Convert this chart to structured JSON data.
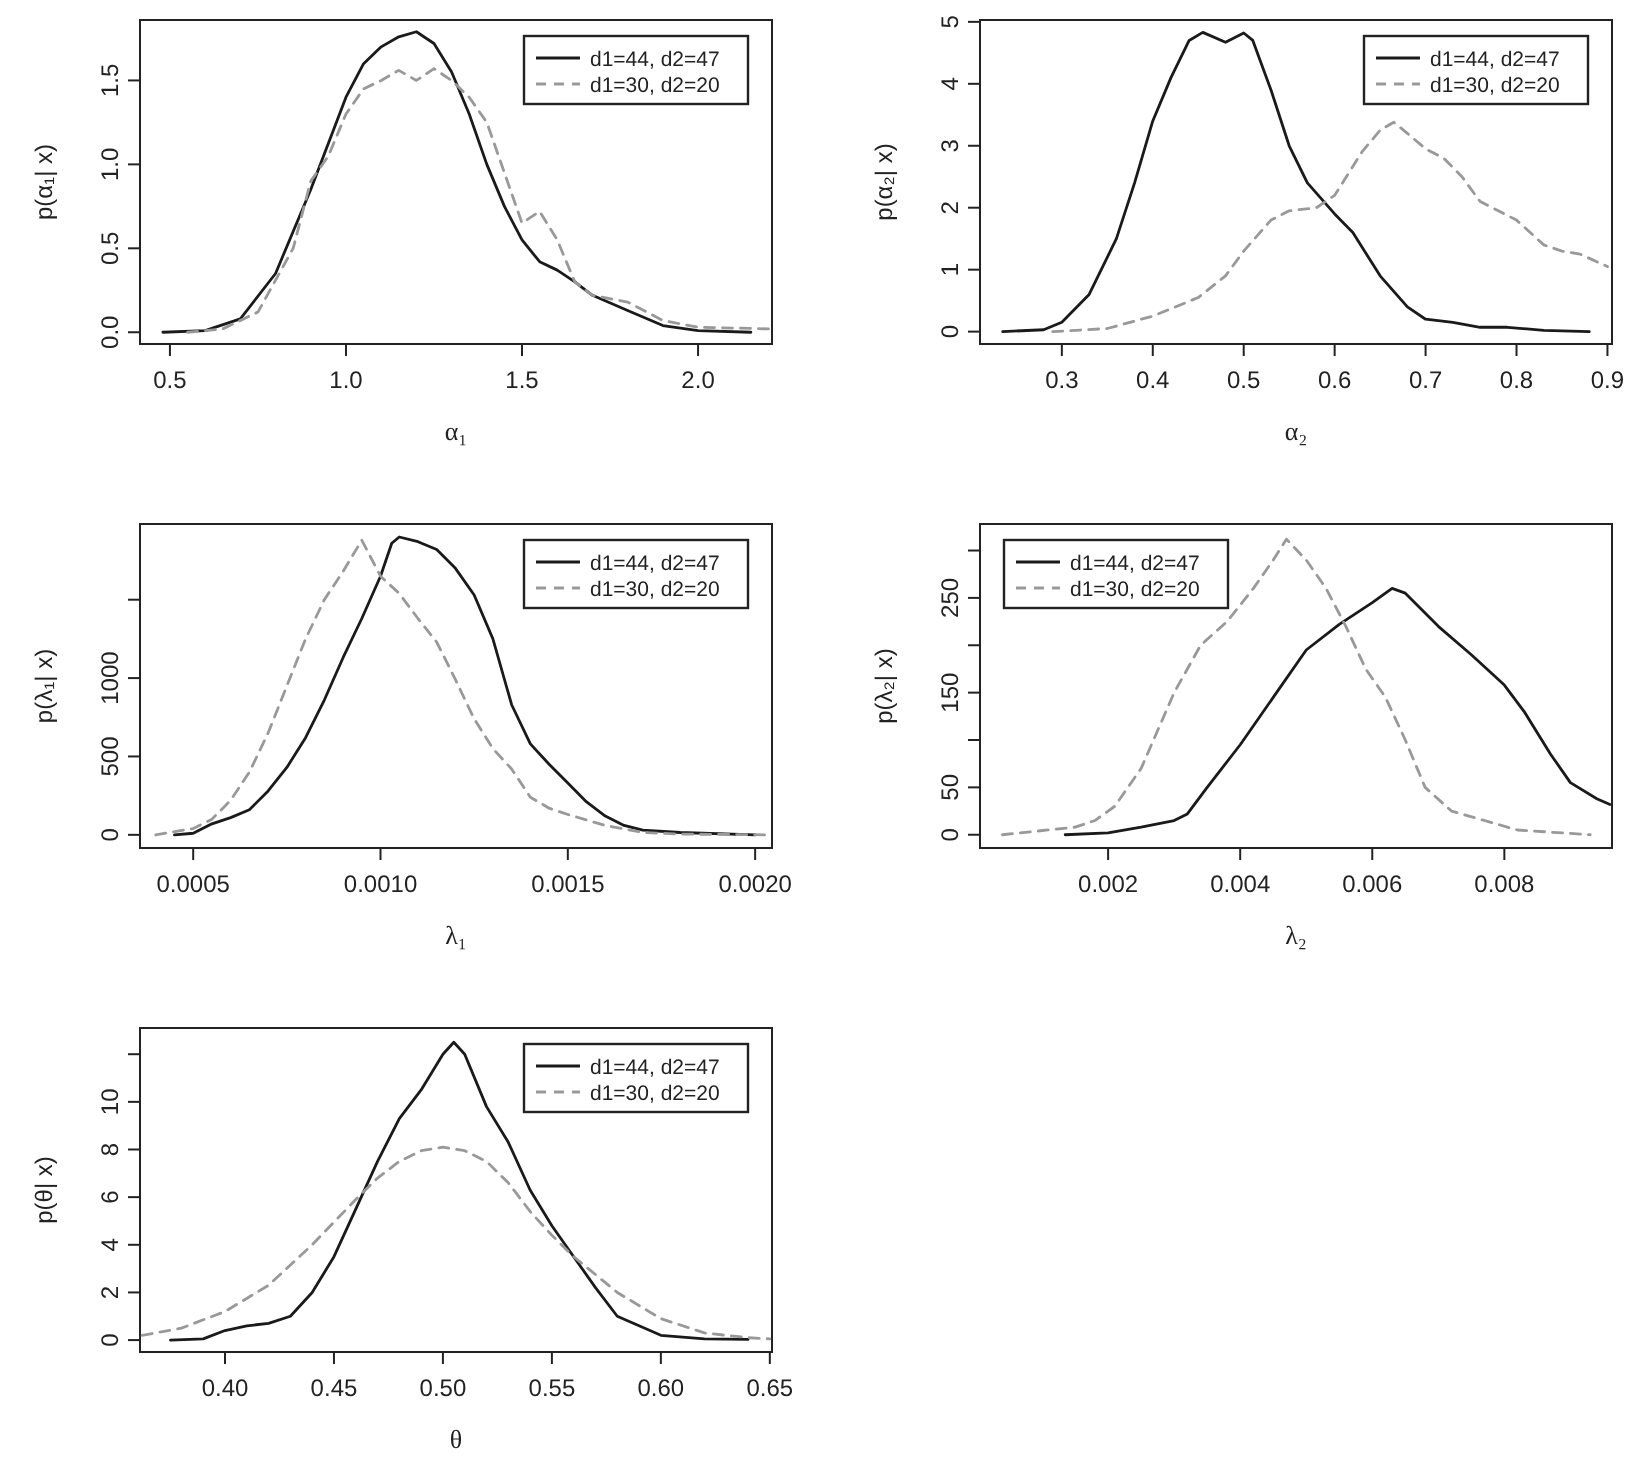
{
  "chart_data": [
    {
      "type": "line",
      "xlabel": "α₁",
      "ylabel": "p(α₁| x)",
      "xlim": [
        0.415,
        2.21
      ],
      "ylim": [
        -0.07,
        1.86
      ],
      "xticks": [
        0.5,
        {
          "value": 1,
          "label": "1.0"
        },
        1.5,
        {
          "value": 2,
          "label": "2.0"
        }
      ],
      "yticks": [
        {
          "value": 0,
          "label": "0.0"
        },
        0.5,
        {
          "value": 1,
          "label": "1.0"
        },
        1.5
      ],
      "legend": "top right",
      "series": [
        {
          "name": "d1=44, d2=47",
          "color": "#1a1a1a",
          "line_style": "solid",
          "x": [
            0.48,
            0.6,
            0.7,
            0.8,
            0.9,
            1.0,
            1.05,
            1.1,
            1.15,
            1.2,
            1.25,
            1.3,
            1.35,
            1.4,
            1.45,
            1.5,
            1.55,
            1.6,
            1.65,
            1.7,
            1.8,
            1.9,
            2.0,
            2.15
          ],
          "values": [
            0,
            0.01,
            0.08,
            0.35,
            0.85,
            1.4,
            1.6,
            1.7,
            1.76,
            1.79,
            1.72,
            1.55,
            1.3,
            1.0,
            0.75,
            0.55,
            0.42,
            0.37,
            0.3,
            0.22,
            0.13,
            0.04,
            0.01,
            0
          ]
        },
        {
          "name": "d1=30, d2=20",
          "color": "#999999",
          "line_style": "dashed",
          "x": [
            0.55,
            0.65,
            0.75,
            0.85,
            0.9,
            0.95,
            1.0,
            1.05,
            1.1,
            1.15,
            1.2,
            1.25,
            1.3,
            1.35,
            1.4,
            1.45,
            1.5,
            1.55,
            1.6,
            1.65,
            1.7,
            1.8,
            1.9,
            2.0,
            2.2
          ],
          "values": [
            0,
            0.02,
            0.12,
            0.5,
            0.9,
            1.05,
            1.3,
            1.45,
            1.5,
            1.56,
            1.5,
            1.57,
            1.5,
            1.4,
            1.25,
            0.95,
            0.65,
            0.72,
            0.55,
            0.3,
            0.22,
            0.18,
            0.07,
            0.03,
            0.02
          ]
        }
      ]
    },
    {
      "type": "line",
      "xlabel": "α₂",
      "ylabel": "p(α₂| x)",
      "xlim": [
        0.21,
        0.905
      ],
      "ylim": [
        -0.2,
        5.03
      ],
      "xticks": [
        0.3,
        0.4,
        0.5,
        0.6,
        0.7,
        0.8,
        0.9
      ],
      "yticks": [
        0,
        1,
        2,
        3,
        4,
        5
      ],
      "legend": "top right",
      "series": [
        {
          "name": "d1=44, d2=47",
          "color": "#1a1a1a",
          "line_style": "solid",
          "x": [
            0.235,
            0.28,
            0.3,
            0.33,
            0.36,
            0.38,
            0.4,
            0.42,
            0.44,
            0.455,
            0.48,
            0.5,
            0.51,
            0.53,
            0.55,
            0.57,
            0.6,
            0.62,
            0.65,
            0.68,
            0.7,
            0.73,
            0.76,
            0.79,
            0.83,
            0.88
          ],
          "values": [
            0,
            0.03,
            0.15,
            0.6,
            1.5,
            2.4,
            3.4,
            4.1,
            4.7,
            4.83,
            4.67,
            4.82,
            4.7,
            3.9,
            3.0,
            2.4,
            1.9,
            1.6,
            0.9,
            0.4,
            0.2,
            0.15,
            0.07,
            0.07,
            0.02,
            0
          ]
        },
        {
          "name": "d1=30, d2=20",
          "color": "#999999",
          "line_style": "dashed",
          "x": [
            0.29,
            0.35,
            0.4,
            0.45,
            0.48,
            0.5,
            0.53,
            0.55,
            0.58,
            0.6,
            0.63,
            0.65,
            0.665,
            0.68,
            0.7,
            0.72,
            0.74,
            0.76,
            0.78,
            0.8,
            0.83,
            0.85,
            0.87,
            0.9
          ],
          "values": [
            0,
            0.05,
            0.25,
            0.55,
            0.9,
            1.3,
            1.8,
            1.95,
            2.0,
            2.2,
            2.9,
            3.25,
            3.38,
            3.2,
            2.95,
            2.8,
            2.5,
            2.1,
            1.95,
            1.8,
            1.4,
            1.3,
            1.25,
            1.05
          ]
        }
      ]
    },
    {
      "type": "line",
      "xlabel": "λ₁",
      "ylabel": "p(λ₁| x)",
      "xlim": [
        0.000358,
        0.002045
      ],
      "ylim": [
        -84,
        1983
      ],
      "xticks": [
        0.0005,
        {
          "value": 0.001,
          "label": "0.0010"
        },
        0.0015,
        {
          "value": 0.002,
          "label": "0.0020"
        }
      ],
      "yticks": [
        0,
        500,
        1000,
        {
          "value": 1500,
          "label": null
        }
      ],
      "legend": "top right",
      "series": [
        {
          "name": "d1=44, d2=47",
          "color": "#1a1a1a",
          "line_style": "solid",
          "x": [
            0.00045,
            0.0005,
            0.00055,
            0.0006,
            0.00065,
            0.0007,
            0.00075,
            0.0008,
            0.00085,
            0.0009,
            0.00095,
            0.001,
            0.00103,
            0.00105,
            0.0011,
            0.00115,
            0.0012,
            0.00125,
            0.0013,
            0.00135,
            0.0014,
            0.00145,
            0.0015,
            0.00155,
            0.0016,
            0.00165,
            0.0017,
            0.0018,
            0.002
          ],
          "values": [
            0,
            10,
            70,
            110,
            160,
            280,
            430,
            620,
            860,
            1130,
            1380,
            1650,
            1860,
            1900,
            1870,
            1820,
            1700,
            1530,
            1250,
            830,
            580,
            450,
            330,
            210,
            120,
            60,
            30,
            15,
            0
          ]
        },
        {
          "name": "d1=30, d2=20",
          "color": "#999999",
          "line_style": "dashed",
          "x": [
            0.0004,
            0.0005,
            0.00055,
            0.0006,
            0.00065,
            0.0007,
            0.00075,
            0.0008,
            0.00085,
            0.0009,
            0.00095,
            0.001,
            0.00105,
            0.0011,
            0.00115,
            0.0012,
            0.00125,
            0.0013,
            0.00135,
            0.0014,
            0.00145,
            0.0015,
            0.0016,
            0.0017,
            0.0018,
            0.00204
          ],
          "values": [
            0,
            40,
            100,
            220,
            400,
            650,
            950,
            1250,
            1500,
            1680,
            1880,
            1650,
            1540,
            1380,
            1230,
            990,
            740,
            550,
            420,
            240,
            170,
            130,
            60,
            15,
            5,
            0
          ]
        }
      ]
    },
    {
      "type": "line",
      "xlabel": "λ₂",
      "ylabel": "p(λ₂| x)",
      "xlim": [
        6e-05,
        0.00963
      ],
      "ylim": [
        -14,
        328
      ],
      "xticks": [
        0.002,
        0.004,
        0.006,
        0.008
      ],
      "yticks": [
        0,
        50,
        {
          "value": 100,
          "label": null
        },
        150,
        {
          "value": 200,
          "label": null
        },
        250,
        {
          "value": 300,
          "label": null
        }
      ],
      "legend": "top left",
      "series": [
        {
          "name": "d1=44, d2=47",
          "color": "#1a1a1a",
          "line_style": "solid",
          "x": [
            0.00135,
            0.002,
            0.0025,
            0.003,
            0.0032,
            0.0035,
            0.004,
            0.0045,
            0.005,
            0.0055,
            0.006,
            0.0063,
            0.0065,
            0.007,
            0.0075,
            0.008,
            0.0083,
            0.0087,
            0.009,
            0.0094,
            0.0096
          ],
          "values": [
            0,
            2,
            8,
            15,
            22,
            50,
            95,
            145,
            195,
            222,
            245,
            260,
            255,
            220,
            190,
            158,
            130,
            85,
            55,
            38,
            32
          ]
        },
        {
          "name": "d1=30, d2=20",
          "color": "#999999",
          "line_style": "dashed",
          "x": [
            0.0004,
            0.0015,
            0.0018,
            0.0021,
            0.0025,
            0.003,
            0.0034,
            0.0038,
            0.0042,
            0.0045,
            0.0047,
            0.005,
            0.0053,
            0.0056,
            0.0059,
            0.0062,
            0.0065,
            0.0068,
            0.0072,
            0.0077,
            0.0082,
            0.0093
          ],
          "values": [
            0,
            8,
            15,
            30,
            70,
            150,
            200,
            225,
            260,
            290,
            312,
            290,
            260,
            220,
            175,
            145,
            100,
            50,
            25,
            15,
            5,
            0
          ]
        }
      ]
    },
    {
      "type": "line",
      "xlabel": "θ",
      "ylabel": "p(θ| x)",
      "xlim": [
        0.361,
        0.651
      ],
      "ylim": [
        -0.5,
        13.1
      ],
      "xticks": [
        {
          "value": 0.4,
          "label": "0.40"
        },
        0.45,
        {
          "value": 0.5,
          "label": "0.50"
        },
        0.55,
        {
          "value": 0.6,
          "label": "0.60"
        },
        0.65
      ],
      "yticks": [
        0,
        2,
        4,
        6,
        8,
        10,
        {
          "value": 12,
          "label": null
        }
      ],
      "legend": "top right",
      "series": [
        {
          "name": "d1=44, d2=47",
          "color": "#1a1a1a",
          "line_style": "solid",
          "x": [
            0.375,
            0.39,
            0.4,
            0.41,
            0.42,
            0.43,
            0.44,
            0.45,
            0.46,
            0.47,
            0.48,
            0.49,
            0.5,
            0.505,
            0.51,
            0.52,
            0.53,
            0.54,
            0.55,
            0.56,
            0.57,
            0.58,
            0.59,
            0.6,
            0.62,
            0.64
          ],
          "values": [
            0,
            0.05,
            0.4,
            0.6,
            0.7,
            1.0,
            2.0,
            3.5,
            5.5,
            7.5,
            9.3,
            10.5,
            12.0,
            12.5,
            12.0,
            9.8,
            8.3,
            6.3,
            4.8,
            3.5,
            2.2,
            1.0,
            0.6,
            0.2,
            0.05,
            0.03
          ]
        },
        {
          "name": "d1=30, d2=20",
          "color": "#999999",
          "line_style": "dashed",
          "x": [
            0.362,
            0.38,
            0.4,
            0.42,
            0.44,
            0.46,
            0.47,
            0.48,
            0.49,
            0.5,
            0.51,
            0.52,
            0.53,
            0.54,
            0.55,
            0.56,
            0.58,
            0.6,
            0.62,
            0.64,
            0.65
          ],
          "values": [
            0.2,
            0.5,
            1.2,
            2.3,
            4.0,
            5.9,
            6.8,
            7.5,
            7.95,
            8.1,
            7.95,
            7.5,
            6.6,
            5.4,
            4.4,
            3.5,
            2.0,
            0.9,
            0.3,
            0.1,
            0.05
          ]
        }
      ]
    }
  ]
}
